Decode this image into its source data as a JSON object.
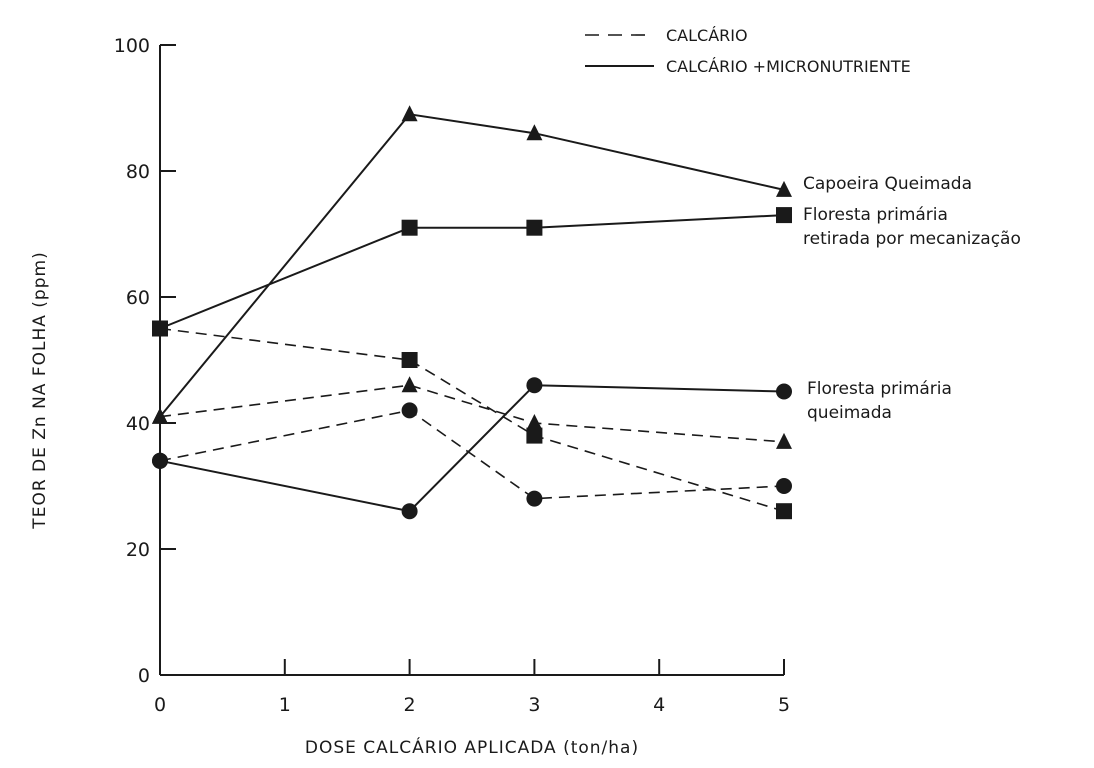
{
  "chart_data": {
    "type": "line",
    "xlabel": "DOSE CALCÁRIO APLICADA (ton/ha)",
    "ylabel": "TEOR DE Zn NA FOLHA (ppm)",
    "xlim": [
      0,
      5
    ],
    "ylim": [
      0,
      100
    ],
    "x_ticks": [
      "0",
      "1",
      "2",
      "3",
      "4",
      "5"
    ],
    "y_ticks": [
      "0",
      "20",
      "40",
      "60",
      "80",
      "100"
    ],
    "grid": false,
    "legend": {
      "placement": "top-right",
      "entries": [
        {
          "label": "CALCÁRIO",
          "style": "dashed"
        },
        {
          "label": "CALCÁRIO +MICRONUTRIENTE",
          "style": "solid"
        }
      ]
    },
    "annotations": [
      {
        "id": "capoeira",
        "lines": [
          "Capoeira Queimada"
        ],
        "marker": "triangle"
      },
      {
        "id": "floresta_mec",
        "lines": [
          "Floresta primária",
          "retirada por mecanização"
        ],
        "marker": "square"
      },
      {
        "id": "floresta_q",
        "lines": [
          "Floresta primária",
          "queimada"
        ],
        "marker": "circle"
      }
    ],
    "series": [
      {
        "group": "capoeira",
        "style": "solid",
        "marker": "triangle",
        "x": [
          0,
          2,
          3,
          5
        ],
        "y": [
          41,
          89,
          86,
          77
        ]
      },
      {
        "group": "floresta_mec",
        "style": "solid",
        "marker": "square",
        "x": [
          0,
          2,
          3,
          5
        ],
        "y": [
          55,
          71,
          71,
          73
        ]
      },
      {
        "group": "floresta_q",
        "style": "solid",
        "marker": "circle",
        "x": [
          0,
          2,
          3,
          5
        ],
        "y": [
          34,
          26,
          46,
          45
        ]
      },
      {
        "group": "floresta_mec",
        "style": "dashed",
        "marker": "square",
        "x": [
          0,
          2,
          3,
          5
        ],
        "y": [
          55,
          50,
          38,
          26
        ]
      },
      {
        "group": "capoeira",
        "style": "dashed",
        "marker": "triangle",
        "x": [
          0,
          2,
          3,
          5
        ],
        "y": [
          41,
          46,
          40,
          37
        ]
      },
      {
        "group": "floresta_q",
        "style": "dashed",
        "marker": "circle",
        "x": [
          0,
          2,
          3,
          5
        ],
        "y": [
          34,
          42,
          28,
          30
        ]
      }
    ]
  }
}
